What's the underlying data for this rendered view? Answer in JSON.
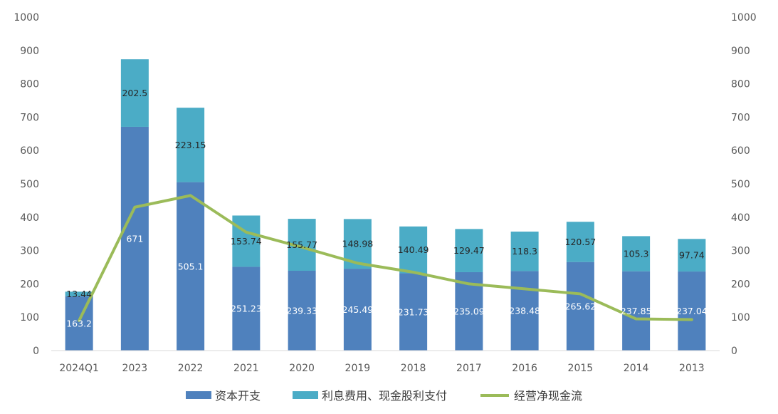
{
  "chart_data": {
    "type": "bar",
    "stacked": true,
    "categories": [
      "2024Q1",
      "2023",
      "2022",
      "2021",
      "2020",
      "2019",
      "2018",
      "2017",
      "2016",
      "2015",
      "2014",
      "2013"
    ],
    "series": [
      {
        "name": "资本开支",
        "type": "bar",
        "color": "#4F81BD",
        "values": [
          163.2,
          671,
          505.1,
          251.23,
          239.33,
          245.49,
          231.73,
          235.09,
          238.48,
          265.62,
          237.85,
          237.04
        ]
      },
      {
        "name": "利息费用、现金股利支付",
        "type": "bar",
        "color": "#4BACC6",
        "values": [
          13.44,
          202.5,
          223.15,
          153.74,
          155.77,
          148.98,
          140.49,
          129.47,
          118.3,
          120.57,
          105.3,
          97.74
        ]
      },
      {
        "name": "经营净现金流",
        "type": "line",
        "color": "#9BBB59",
        "values": [
          90,
          430,
          465,
          355,
          310,
          262,
          235,
          200,
          185,
          170,
          95,
          93
        ]
      }
    ],
    "ylim": [
      0,
      1000
    ],
    "yticks": [
      "0",
      "100",
      "200",
      "300",
      "400",
      "500",
      "600",
      "700",
      "800",
      "900",
      "1000"
    ],
    "y2lim": [
      0,
      1000
    ],
    "y2ticks": [
      "0",
      "100",
      "200",
      "300",
      "400",
      "500",
      "600",
      "700",
      "800",
      "900",
      "1000"
    ],
    "grid": false,
    "legend": "bottom"
  }
}
